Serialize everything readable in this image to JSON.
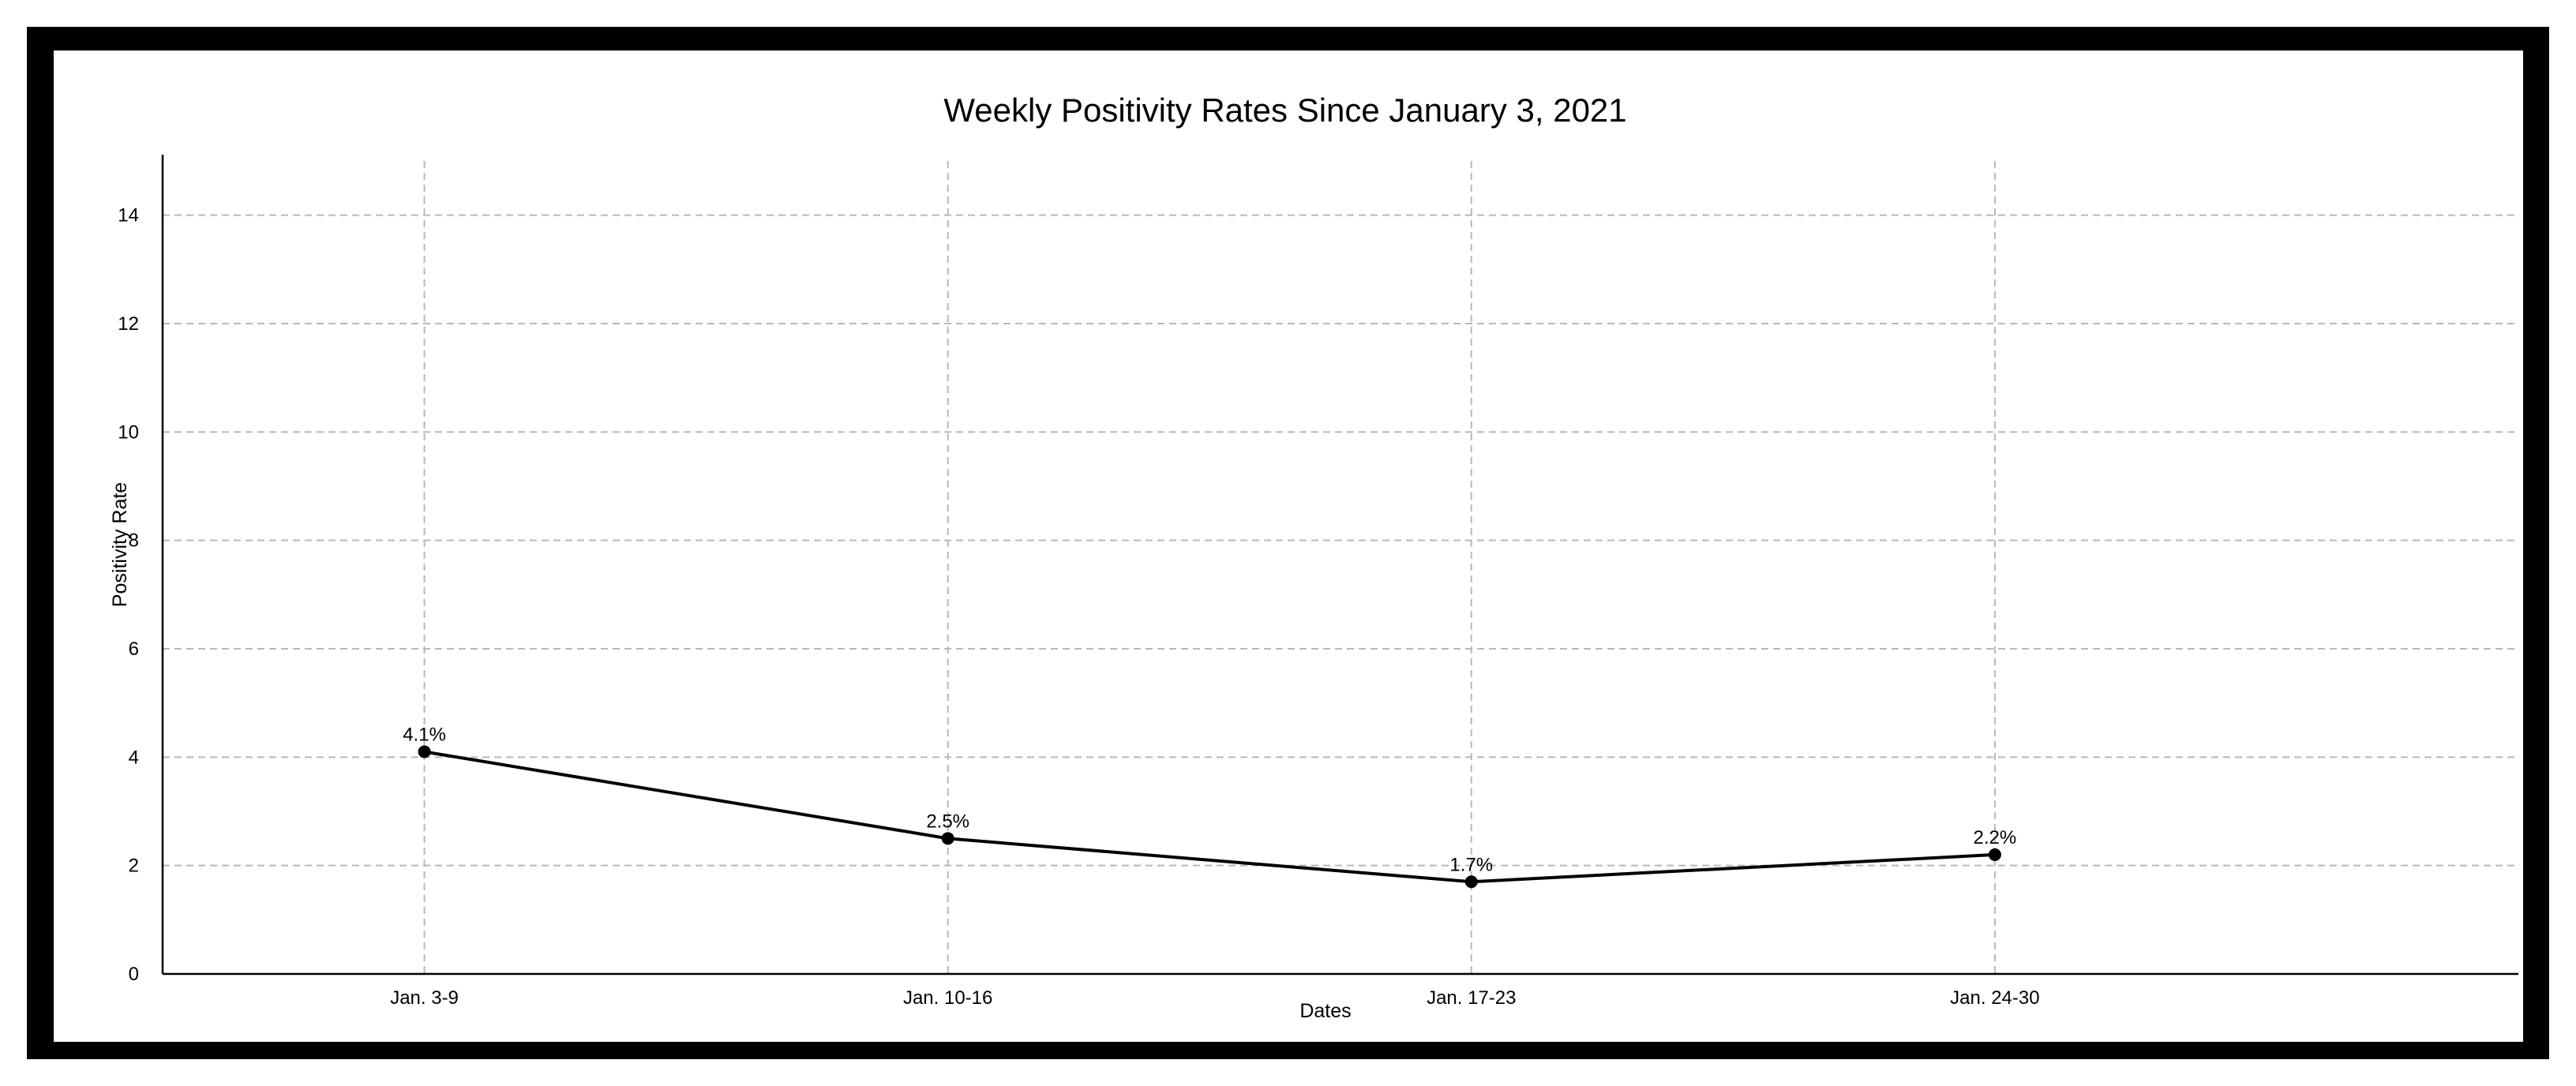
{
  "chart_data": {
    "type": "line",
    "title": "Weekly Positivity Rates Since January 3, 2021",
    "xlabel": "Dates",
    "ylabel": "Positivity Rate",
    "categories": [
      "Jan. 3-9",
      "Jan. 10-16",
      "Jan. 17-23",
      "Jan. 24-30"
    ],
    "values": [
      4.1,
      2.5,
      1.7,
      2.2
    ],
    "data_labels": [
      "4.1%",
      "2.5%",
      "1.7%",
      "2.2%"
    ],
    "ylim": [
      0,
      15
    ],
    "yticks": [
      0,
      2,
      4,
      6,
      8,
      10,
      12,
      14
    ],
    "grid": true,
    "line_color": "#000000",
    "frame_color": "#000000"
  }
}
